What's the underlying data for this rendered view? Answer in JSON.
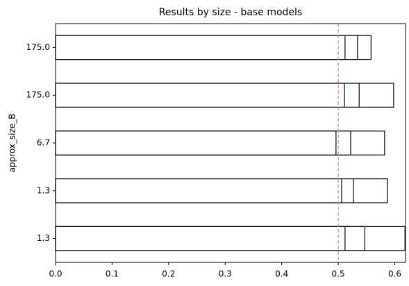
{
  "chart_data": {
    "type": "barh_overlay",
    "title": "Results by size - base models",
    "ylabel": "approx_size_B",
    "categories": [
      "1.3",
      "1.3",
      "6.7",
      "175.0",
      "175.0"
    ],
    "series": [
      {
        "color": "#ffffff",
        "edgecolor": "#000000",
        "values": [
          0.512,
          0.506,
          0.496,
          0.511,
          0.512
        ]
      },
      {
        "color": "#ffffff",
        "edgecolor": "#000000",
        "values": [
          0.547,
          0.527,
          0.522,
          0.537,
          0.534
        ]
      },
      {
        "color": "#ffffff",
        "edgecolor": "#000000",
        "values": [
          0.618,
          0.587,
          0.582,
          0.598,
          0.558
        ]
      }
    ],
    "xlim": [
      0,
      0.619
    ],
    "xticks": [
      {
        "value": 0,
        "label": "0.0"
      },
      0.1,
      0.2,
      0.3,
      0.4,
      0.5,
      0.6
    ],
    "vline": 0.5,
    "vline_color": "#e88080"
  }
}
